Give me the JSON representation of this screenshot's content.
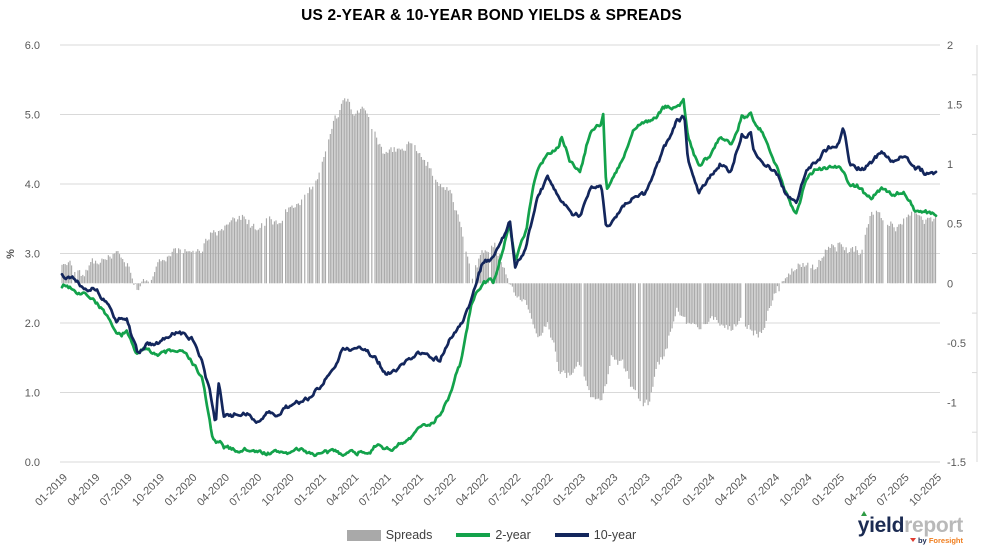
{
  "title": "US 2-YEAR & 10-YEAR BOND YIELDS & SPREADS",
  "chart_data": {
    "type": "combo line+bar, dual axis, daily bond-market time series",
    "title": "US 2-YEAR & 10-YEAR BOND YIELDS & SPREADS",
    "left_axis": {
      "label": "%",
      "min": 0,
      "max": 6,
      "tick_values": [
        6,
        5,
        4,
        3,
        2,
        1,
        0
      ],
      "tick_labels": [
        "6.0",
        "5.0",
        "4.0",
        "3.0",
        "2.0",
        "1.0",
        "0.0"
      ]
    },
    "right_axis": {
      "min": -1.5,
      "max": 2,
      "tick_values": [
        2,
        1.5,
        1,
        0.5,
        0,
        -0.5,
        -1,
        -1.5
      ],
      "tick_labels": [
        "2",
        "1.5",
        "1",
        "0.5",
        "0",
        "-0.5",
        "-1",
        "-1.5"
      ]
    },
    "x_axis": {
      "start_month": "01-2019",
      "end_month": "10-2025",
      "data_interval": "monthly anchor values (series rendered with daily-style jitter)",
      "tick_labels": [
        "01-2019",
        "04-2019",
        "07-2019",
        "10-2019",
        "01-2020",
        "04-2020",
        "07-2020",
        "10-2020",
        "01-2021",
        "04-2021",
        "07-2021",
        "10-2021",
        "01-2022",
        "04-2022",
        "07-2022",
        "10-2022",
        "01-2023",
        "04-2023",
        "07-2023",
        "10-2023",
        "01-2024",
        "04-2024",
        "07-2024",
        "10-2024",
        "01-2025",
        "04-2025",
        "07-2025",
        "10-2025"
      ]
    },
    "grid": "horizontal only, at left-axis ticks",
    "legend_position": "bottom center",
    "series": [
      {
        "name": "Spreads",
        "key": "spreads",
        "type": "bar",
        "axis": "right",
        "color": "#a9a9a9",
        "note": "10-year minus 2-year, percentage points",
        "monthly_values": [
          0.15,
          0.18,
          0.1,
          0.2,
          0.2,
          0.25,
          0.2,
          0.0,
          0.05,
          0.15,
          0.2,
          0.25,
          0.3,
          0.3,
          0.5,
          0.42,
          0.5,
          0.52,
          0.46,
          0.54,
          0.54,
          0.65,
          0.71,
          0.79,
          0.95,
          1.23,
          1.5,
          1.46,
          1.45,
          1.28,
          1.08,
          1.09,
          1.15,
          1.13,
          1.0,
          0.78,
          0.78,
          0.5,
          0.05,
          0.25,
          0.3,
          0.15,
          -0.1,
          -0.25,
          -0.4,
          -0.35,
          -0.7,
          -0.75,
          -0.7,
          -0.9,
          -0.95,
          -0.6,
          -0.65,
          -0.95,
          -1.02,
          -0.75,
          -0.55,
          -0.2,
          -0.3,
          -0.35,
          -0.25,
          -0.35,
          -0.4,
          -0.3,
          -0.4,
          -0.4,
          -0.1,
          0.0,
          0.1,
          0.15,
          0.1,
          0.3,
          0.35,
          0.3,
          0.3,
          0.5,
          0.55,
          0.5,
          0.5,
          0.6,
          0.55,
          0.55
        ]
      },
      {
        "name": "2-year",
        "key": "two_year",
        "type": "line",
        "axis": "left",
        "color": "#13a24b",
        "monthly_values": [
          2.55,
          2.5,
          2.45,
          2.35,
          2.15,
          1.8,
          1.85,
          1.55,
          1.65,
          1.55,
          1.6,
          1.6,
          1.45,
          1.2,
          0.3,
          0.2,
          0.17,
          0.18,
          0.14,
          0.14,
          0.13,
          0.15,
          0.16,
          0.13,
          0.12,
          0.12,
          0.15,
          0.16,
          0.15,
          0.22,
          0.2,
          0.21,
          0.27,
          0.45,
          0.55,
          0.7,
          1.0,
          1.45,
          2.3,
          2.6,
          2.6,
          3.1,
          2.9,
          3.35,
          4.2,
          4.45,
          4.5,
          4.35,
          4.2,
          4.8,
          4.9,
          4.05,
          4.35,
          4.75,
          4.9,
          4.95,
          5.1,
          5.1,
          4.7,
          4.25,
          4.35,
          4.65,
          4.6,
          5.0,
          4.9,
          4.7,
          4.3,
          3.9,
          3.6,
          4.1,
          4.25,
          4.25,
          4.25,
          4.0,
          3.95,
          3.8,
          3.95,
          3.8,
          3.9,
          3.65,
          3.6,
          3.55
        ]
      },
      {
        "name": "10-year",
        "key": "ten_year",
        "type": "line",
        "axis": "left",
        "color": "#13265c",
        "monthly_values": [
          2.7,
          2.68,
          2.55,
          2.55,
          2.35,
          2.05,
          2.05,
          1.55,
          1.7,
          1.7,
          1.8,
          1.85,
          1.75,
          1.5,
          0.8,
          0.62,
          0.67,
          0.7,
          0.6,
          0.68,
          0.67,
          0.8,
          0.87,
          0.92,
          1.07,
          1.35,
          1.65,
          1.62,
          1.6,
          1.5,
          1.28,
          1.3,
          1.42,
          1.58,
          1.55,
          1.48,
          1.78,
          1.95,
          2.35,
          2.85,
          2.9,
          3.25,
          2.8,
          3.1,
          3.8,
          4.1,
          3.8,
          3.6,
          3.5,
          3.9,
          3.95,
          3.45,
          3.7,
          3.8,
          3.88,
          4.2,
          4.55,
          4.9,
          4.4,
          3.9,
          4.1,
          4.3,
          4.2,
          4.7,
          4.5,
          4.3,
          4.2,
          3.9,
          3.7,
          4.25,
          4.35,
          4.55,
          4.6,
          4.3,
          4.25,
          4.3,
          4.5,
          4.3,
          4.4,
          4.25,
          4.15,
          4.1
        ]
      }
    ],
    "intra_month_points": {
      "note": "extra [month-index, value] anchors for sharp intra-month moves visible in the chart",
      "two_year": [
        [
          41.5,
          3.42
        ],
        [
          46.3,
          4.68
        ],
        [
          50.15,
          5.05
        ],
        [
          50.45,
          3.95
        ],
        [
          57.6,
          5.2
        ],
        [
          63.9,
          5.03
        ]
      ],
      "ten_year": [
        [
          14.25,
          0.55
        ],
        [
          14.5,
          1.15
        ],
        [
          41.5,
          3.45
        ],
        [
          50.4,
          3.4
        ],
        [
          57.7,
          4.97
        ],
        [
          63.9,
          4.72
        ],
        [
          72.4,
          4.78
        ]
      ],
      "spreads": [
        [
          26.5,
          1.56
        ],
        [
          54.5,
          -1.05
        ]
      ]
    }
  },
  "legend": {
    "items": [
      {
        "label": "Spreads",
        "key": "spreads"
      },
      {
        "label": "2-year",
        "key": "two_year"
      },
      {
        "label": "10-year",
        "key": "ten_year"
      }
    ]
  },
  "logo": {
    "part_bold": "yield",
    "part_light": "report",
    "byline_by": "by",
    "byline_brand": "Foresight"
  },
  "colors": {
    "bars": "#a9a9a9",
    "line_2yr": "#13a24b",
    "line_10yr": "#13265c",
    "grid": "#d9d9d9",
    "axis_text": "#595959",
    "title_text": "#000000",
    "logo_navy": "#1b2b52",
    "logo_gray": "#b9b9b9",
    "logo_orange": "#f07d1d",
    "logo_red": "#e03c31",
    "logo_green": "#2e9b45"
  }
}
